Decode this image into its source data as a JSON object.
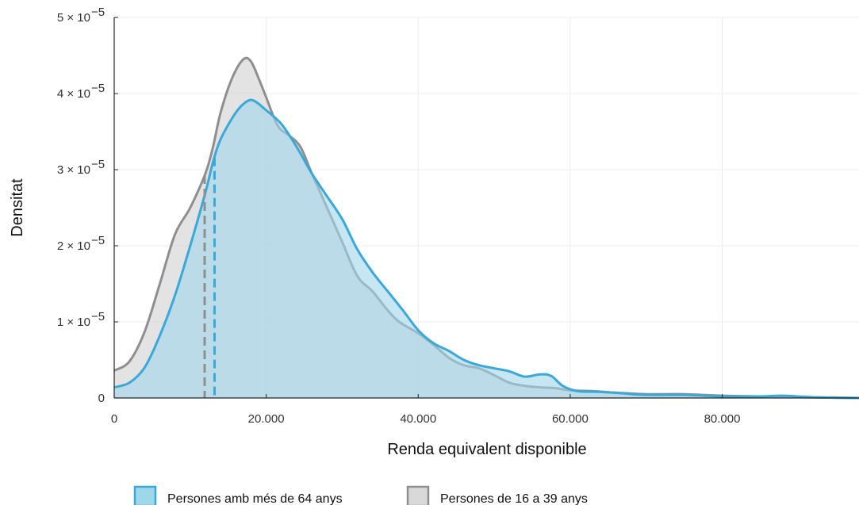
{
  "chart_data": {
    "type": "area",
    "title": "",
    "xlabel": "Renda equivalent disponible",
    "ylabel": "Densitat",
    "xlim": [
      0,
      98000
    ],
    "ylim": [
      0,
      5e-05
    ],
    "x_ticks": [
      {
        "value": 0,
        "label": "0"
      },
      {
        "value": 20000,
        "label": "20.000"
      },
      {
        "value": 40000,
        "label": "40.000"
      },
      {
        "value": 60000,
        "label": "60.000"
      },
      {
        "value": 80000,
        "label": "80.000"
      }
    ],
    "y_ticks": [
      {
        "value": 0,
        "label": "0",
        "exp": ""
      },
      {
        "value": 1e-05,
        "label": "1 × 10",
        "exp": "−5"
      },
      {
        "value": 2e-05,
        "label": "2 × 10",
        "exp": "−5"
      },
      {
        "value": 3e-05,
        "label": "3 × 10",
        "exp": "−5"
      },
      {
        "value": 4e-05,
        "label": "4 × 10",
        "exp": "−5"
      },
      {
        "value": 5e-05,
        "label": "5 × 10",
        "exp": "−5"
      }
    ],
    "grid": true,
    "legend_position": "bottom",
    "series": [
      {
        "name": "Persones de 16 a 39 anys",
        "color": "#8f8f8f",
        "fill": "#d9d9d9",
        "median": 11900,
        "points": [
          [
            0,
            3.6e-06
          ],
          [
            2000,
            4.8e-06
          ],
          [
            4000,
            8.7e-06
          ],
          [
            6000,
            1.5e-05
          ],
          [
            8000,
            2.15e-05
          ],
          [
            10000,
            2.5e-05
          ],
          [
            12000,
            2.95e-05
          ],
          [
            13000,
            3.3e-05
          ],
          [
            14000,
            3.75e-05
          ],
          [
            15500,
            4.2e-05
          ],
          [
            17000,
            4.45e-05
          ],
          [
            18000,
            4.42e-05
          ],
          [
            19000,
            4.2e-05
          ],
          [
            20000,
            3.95e-05
          ],
          [
            21500,
            3.58e-05
          ],
          [
            23000,
            3.45e-05
          ],
          [
            24500,
            3.3e-05
          ],
          [
            26000,
            2.95e-05
          ],
          [
            28000,
            2.5e-05
          ],
          [
            30000,
            2.05e-05
          ],
          [
            32000,
            1.6e-05
          ],
          [
            34000,
            1.4e-05
          ],
          [
            36000,
            1.15e-05
          ],
          [
            37500,
            1e-05
          ],
          [
            40000,
            8.5e-06
          ],
          [
            42000,
            7e-06
          ],
          [
            44000,
            5.3e-06
          ],
          [
            46000,
            4.3e-06
          ],
          [
            48000,
            3.9e-06
          ],
          [
            50000,
            3e-06
          ],
          [
            52000,
            2e-06
          ],
          [
            54000,
            1.6e-06
          ],
          [
            56000,
            1.4e-06
          ],
          [
            58000,
            1.3e-06
          ],
          [
            60000,
            1e-06
          ],
          [
            63000,
            9e-07
          ],
          [
            66000,
            7e-07
          ],
          [
            70000,
            5e-07
          ],
          [
            75000,
            5e-07
          ],
          [
            80000,
            3e-07
          ],
          [
            85000,
            2e-07
          ],
          [
            90000,
            1e-07
          ],
          [
            98000,
            0
          ]
        ]
      },
      {
        "name": "Persones amb més de 64 anys",
        "color": "#3aa8d8",
        "fill": "#9fd6ea",
        "median": 13200,
        "points": [
          [
            0,
            1.4e-06
          ],
          [
            2000,
            2e-06
          ],
          [
            4000,
            4e-06
          ],
          [
            6000,
            8.2e-06
          ],
          [
            8000,
            1.35e-05
          ],
          [
            10000,
            2e-05
          ],
          [
            12000,
            2.7e-05
          ],
          [
            13000,
            3.1e-05
          ],
          [
            14000,
            3.4e-05
          ],
          [
            16000,
            3.75e-05
          ],
          [
            17500,
            3.9e-05
          ],
          [
            18500,
            3.9e-05
          ],
          [
            20000,
            3.78e-05
          ],
          [
            22000,
            3.6e-05
          ],
          [
            24000,
            3.3e-05
          ],
          [
            26000,
            2.95e-05
          ],
          [
            28000,
            2.65e-05
          ],
          [
            30000,
            2.35e-05
          ],
          [
            32000,
            1.95e-05
          ],
          [
            34000,
            1.65e-05
          ],
          [
            36000,
            1.4e-05
          ],
          [
            38000,
            1.15e-05
          ],
          [
            40000,
            8.9e-06
          ],
          [
            42000,
            7.2e-06
          ],
          [
            44000,
            6.2e-06
          ],
          [
            46000,
            5e-06
          ],
          [
            48000,
            4.3e-06
          ],
          [
            50000,
            3.9e-06
          ],
          [
            52000,
            3.5e-06
          ],
          [
            54000,
            2.8e-06
          ],
          [
            56000,
            3.1e-06
          ],
          [
            57500,
            2.9e-06
          ],
          [
            59000,
            1.6e-06
          ],
          [
            61000,
            9e-07
          ],
          [
            64000,
            8e-07
          ],
          [
            67000,
            6e-07
          ],
          [
            70000,
            4e-07
          ],
          [
            75000,
            4e-07
          ],
          [
            80000,
            2e-07
          ],
          [
            85000,
            2e-07
          ],
          [
            88000,
            3e-07
          ],
          [
            92000,
            1e-07
          ],
          [
            98000,
            0
          ]
        ]
      }
    ],
    "legend": [
      {
        "label": "Persones amb més de 64 anys",
        "color": "#3aa8d8",
        "fill": "#9fd6ea"
      },
      {
        "label": "Persones de 16 a 39 anys",
        "color": "#8f8f8f",
        "fill": "#d9d9d9"
      }
    ]
  }
}
